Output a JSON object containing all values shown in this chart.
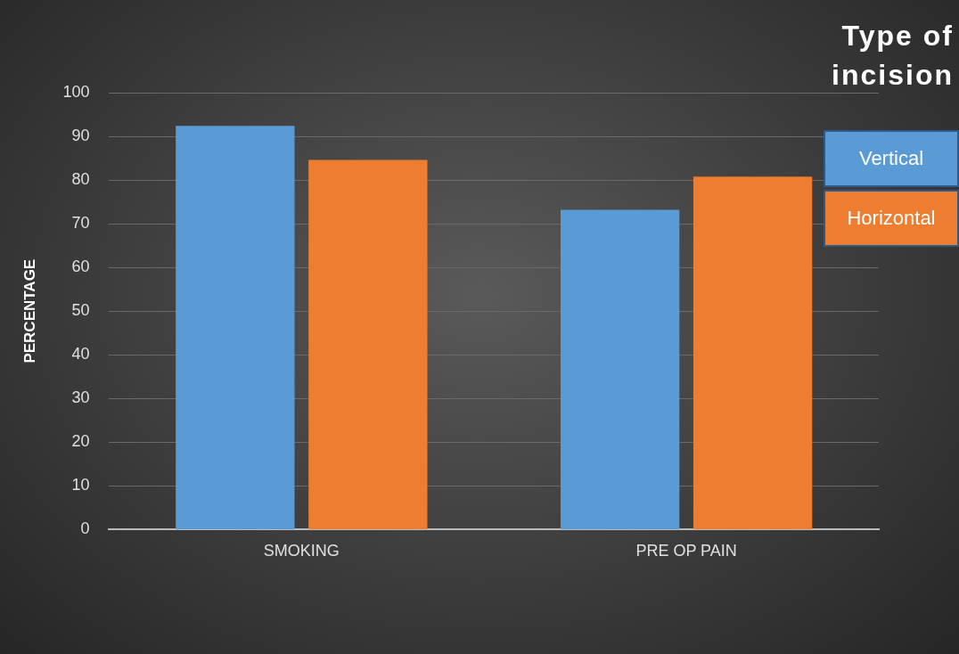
{
  "chart_data": {
    "type": "bar",
    "ylabel": "PERCENTAGE",
    "legend_title": "Type of incision",
    "categories": [
      "SMOKING",
      "PRE OP PAIN"
    ],
    "series": [
      {
        "name": "Vertical",
        "color": "#5b9bd5",
        "values": [
          92.4,
          73.2
        ]
      },
      {
        "name": "Horizontal",
        "color": "#ed7d31",
        "values": [
          84.6,
          80.8
        ]
      }
    ],
    "ylim": [
      0,
      100
    ],
    "yticks": [
      0,
      10,
      20,
      30,
      40,
      50,
      60,
      70,
      80,
      90,
      100
    ],
    "grid": "y",
    "legend": "right"
  }
}
